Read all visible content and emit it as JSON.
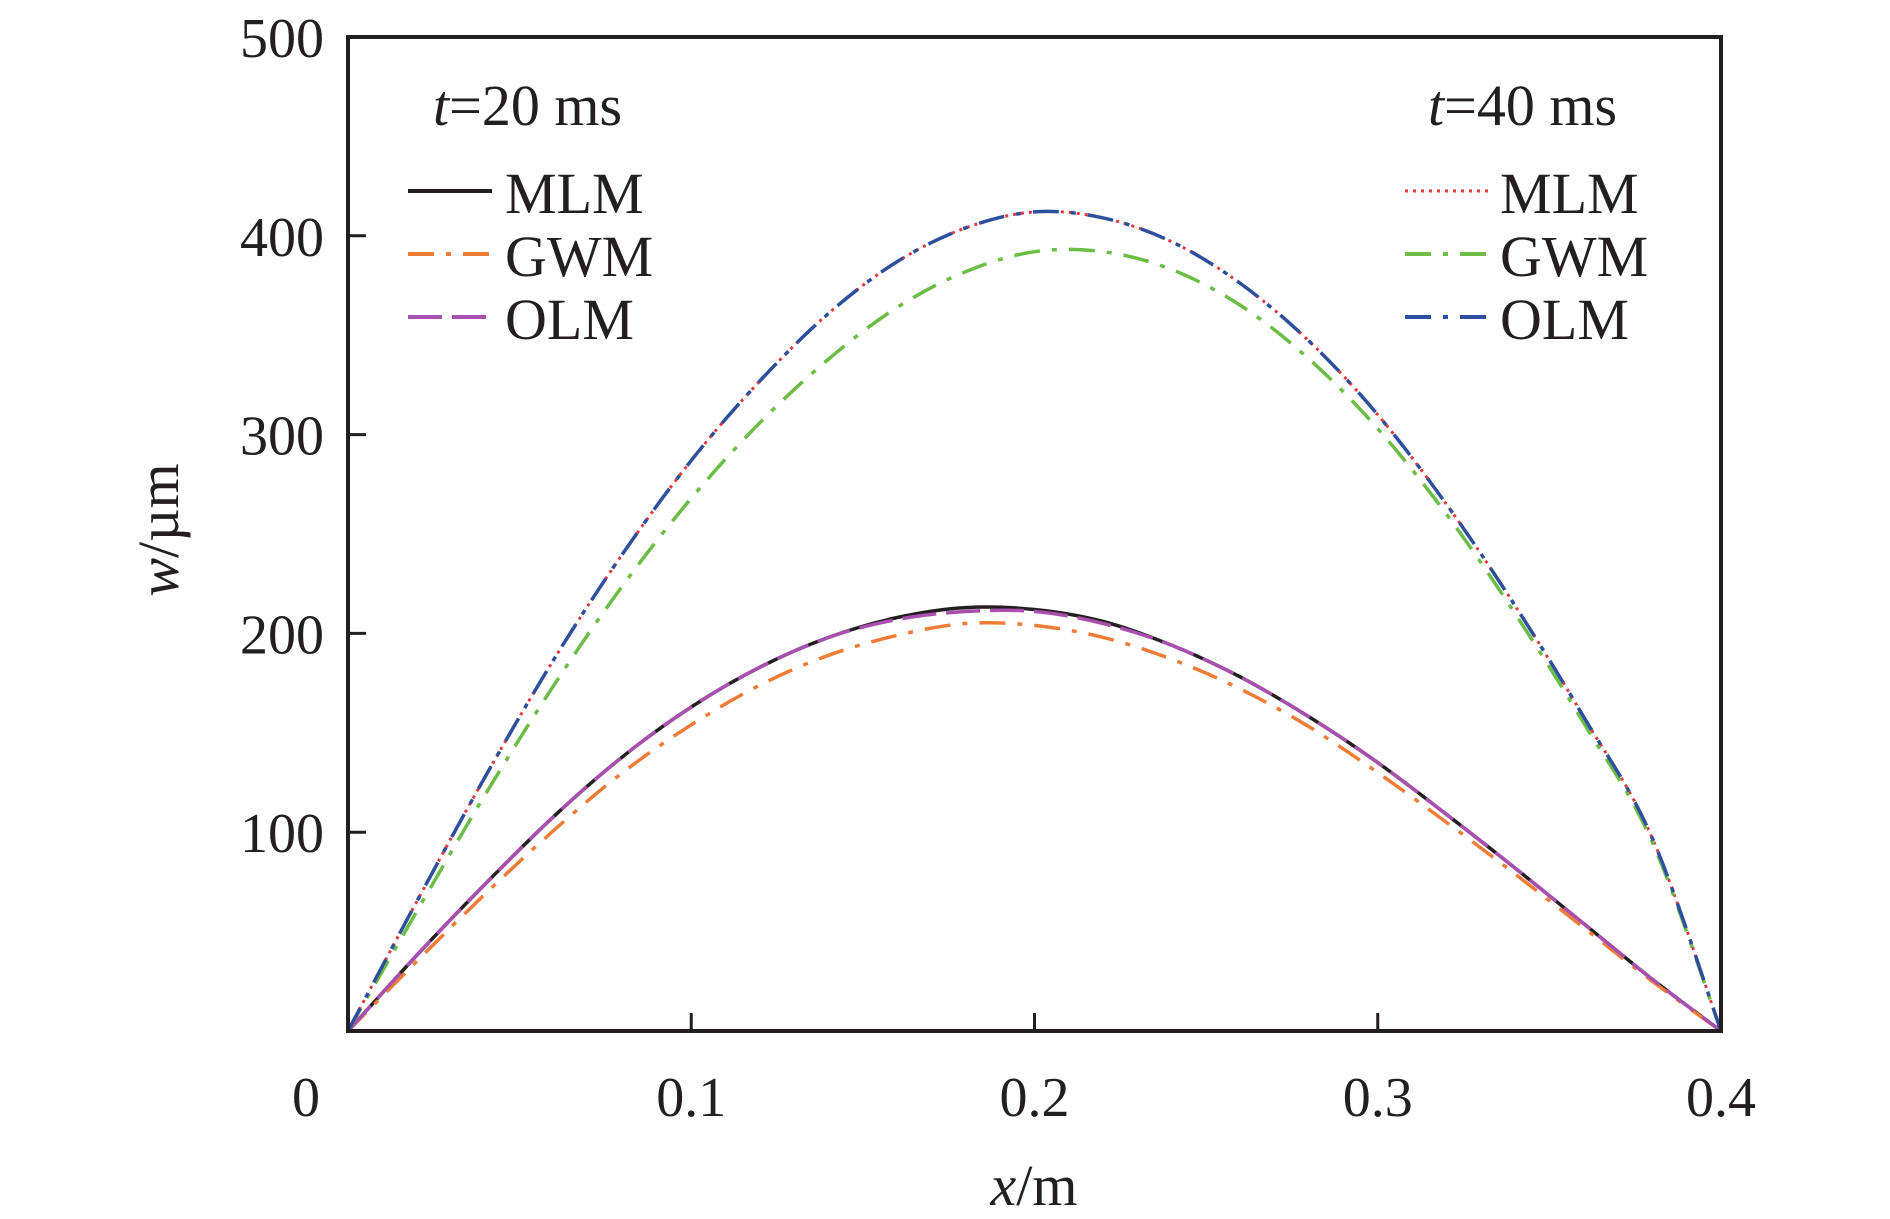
{
  "chart_data": {
    "type": "line",
    "title": "",
    "xlabel": {
      "var": "x",
      "unit": "/m"
    },
    "ylabel": {
      "var": "w",
      "unit": "/µm"
    },
    "xlim": [
      0,
      0.4
    ],
    "ylim": [
      0,
      500
    ],
    "x_ticks": [
      {
        "value": 0,
        "label": "0"
      },
      {
        "value": 0.1,
        "label": "0.1"
      },
      {
        "value": 0.2,
        "label": "0.2"
      },
      {
        "value": 0.3,
        "label": "0.3"
      },
      {
        "value": 0.4,
        "label": "0.4"
      }
    ],
    "y_ticks": [
      {
        "value": 100,
        "label": "100"
      },
      {
        "value": 200,
        "label": "200"
      },
      {
        "value": 300,
        "label": "300"
      },
      {
        "value": 400,
        "label": "400"
      },
      {
        "value": 500,
        "label": "500"
      }
    ],
    "grid": false,
    "x": [
      0,
      0.02,
      0.04,
      0.06,
      0.08,
      0.1,
      0.12,
      0.14,
      0.16,
      0.18,
      0.2,
      0.22,
      0.24,
      0.26,
      0.28,
      0.3,
      0.32,
      0.34,
      0.36,
      0.38,
      0.4
    ],
    "groups": [
      {
        "title_var": "t",
        "title_rest": "=20 ms",
        "legend_position": "top-left",
        "series": [
          {
            "name": "MLM",
            "color": "#231f20",
            "style": "solid",
            "values": [
              0,
              38,
              74,
              108,
              138,
              163,
              183,
              198,
              208,
              213,
              212,
              206,
              194,
              178,
              158,
              135,
              109,
              82,
              54,
              26,
              0
            ]
          },
          {
            "name": "GWM",
            "color": "#ef7d37",
            "style": "dash-dot",
            "values": [
              0,
              35,
              69,
              101,
              130,
              154,
              174,
              189,
              199,
              205,
              204,
              198,
              187,
              172,
              153,
              130,
              105,
              79,
              52,
              25,
              0
            ]
          },
          {
            "name": "OLM",
            "color": "#a94fb0",
            "style": "long-dash",
            "values": [
              0,
              38,
              74,
              108,
              138,
              163,
              183,
              198,
              207,
              211,
              211,
              205,
              194,
              178,
              158,
              135,
              109,
              82,
              54,
              26,
              0
            ]
          }
        ]
      },
      {
        "title_var": "t",
        "title_rest": "=40 ms",
        "legend_position": "top-right",
        "series": [
          {
            "name": "MLM",
            "color": "#e03a3e",
            "style": "dotted",
            "values": [
              0,
              65,
              128,
              187,
              240,
              287,
              327,
              361,
              387,
              404,
              412,
              409,
              397,
              376,
              347,
              310,
              265,
              214,
              158,
              97,
              0
            ]
          },
          {
            "name": "GWM",
            "color": "#6cbd45",
            "style": "dash-dot",
            "values": [
              0,
              60,
              119,
              174,
              224,
              268,
              306,
              338,
              364,
              382,
              392,
              392,
              383,
              365,
              338,
              303,
              260,
              210,
              155,
              95,
              0
            ]
          },
          {
            "name": "OLM",
            "color": "#2e4f9e",
            "style": "dash-dot",
            "values": [
              0,
              65,
              128,
              187,
              240,
              287,
              327,
              361,
              387,
              404,
              412,
              409,
              397,
              376,
              347,
              310,
              265,
              214,
              158,
              97,
              0
            ]
          }
        ]
      }
    ]
  }
}
